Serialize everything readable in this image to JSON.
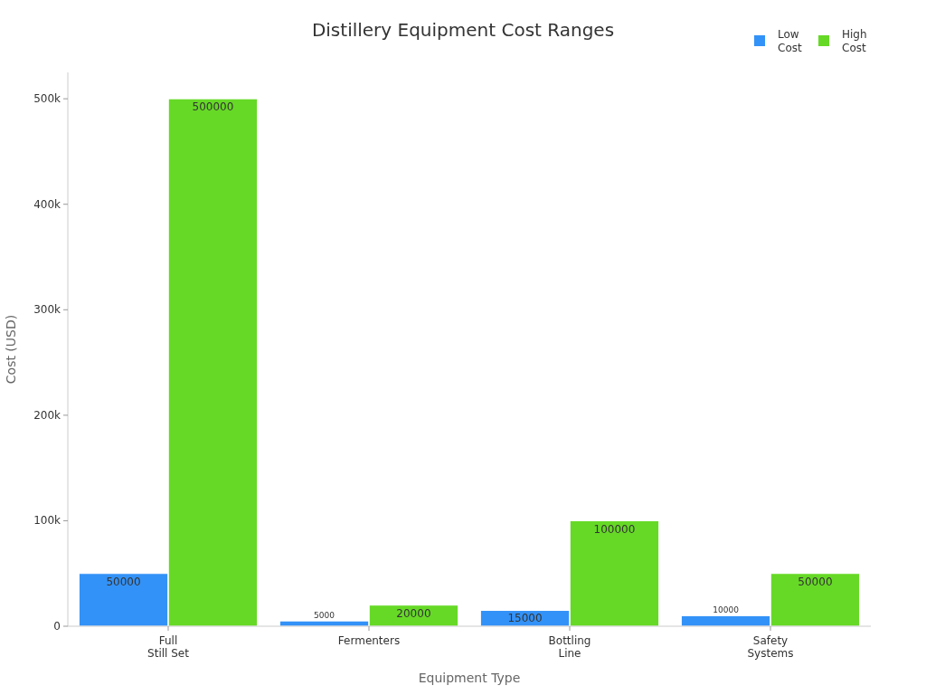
{
  "chart_data": {
    "type": "bar",
    "title": "Distillery Equipment Cost Ranges",
    "xlabel": "Equipment Type",
    "ylabel": "Cost (USD)",
    "categories": [
      "Full Still Set",
      "Fermenters",
      "Bottling Line",
      "Safety Systems"
    ],
    "series": [
      {
        "name": "Low Cost",
        "color": "#3392f7",
        "values": [
          50000,
          5000,
          15000,
          10000
        ]
      },
      {
        "name": "High Cost",
        "color": "#66d926",
        "values": [
          500000,
          20000,
          100000,
          50000
        ]
      }
    ],
    "ylim": [
      0,
      525000
    ],
    "yticks": [
      {
        "value": 0,
        "label": "0"
      },
      {
        "value": 100000,
        "label": "100k"
      },
      {
        "value": 200000,
        "label": "200k"
      },
      {
        "value": 300000,
        "label": "300k"
      },
      {
        "value": 400000,
        "label": "400k"
      },
      {
        "value": 500000,
        "label": "500k"
      }
    ],
    "data_labels": true,
    "legend": "top right",
    "grid": false
  }
}
